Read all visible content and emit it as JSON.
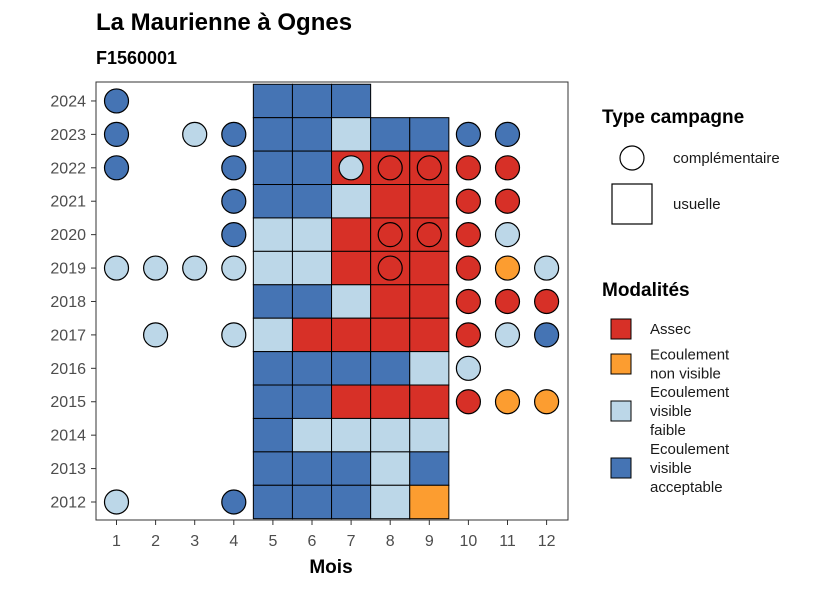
{
  "chart_data": {
    "type": "heatmap",
    "title": "La Maurienne à Ognes",
    "subtitle": "F1560001",
    "xlabel": "Mois",
    "ylabel": "",
    "x_ticks": [
      "1",
      "2",
      "3",
      "4",
      "5",
      "6",
      "7",
      "8",
      "9",
      "10",
      "11",
      "12"
    ],
    "y_ticks": [
      "2012",
      "2013",
      "2014",
      "2015",
      "2016",
      "2017",
      "2018",
      "2019",
      "2020",
      "2021",
      "2022",
      "2023",
      "2024"
    ],
    "grid": false,
    "legend_position": "right",
    "colors": {
      "Assec": "#d73027",
      "Ecoulement non visible": "#fc9d30",
      "Ecoulement visible faible": "#bcd7e8",
      "Ecoulement visible acceptable": "#4574b4"
    },
    "legend_shape": {
      "title": "Type campagne",
      "items": [
        {
          "key": "complementaire",
          "label": "complémentaire",
          "shape": "circle"
        },
        {
          "key": "usuelle",
          "label": "usuelle",
          "shape": "square"
        }
      ]
    },
    "legend_modalites": {
      "title": "Modalités",
      "items": [
        {
          "key": "Assec",
          "lines": [
            "Assec"
          ]
        },
        {
          "key": "Ecoulement non visible",
          "lines": [
            "Ecoulement",
            "non visible"
          ]
        },
        {
          "key": "Ecoulement visible faible",
          "lines": [
            "Ecoulement",
            "visible",
            "faible"
          ]
        },
        {
          "key": "Ecoulement visible acceptable",
          "lines": [
            "Ecoulement",
            "visible",
            "acceptable"
          ]
        }
      ]
    },
    "usuelle": [
      {
        "year": 2024,
        "month": 5,
        "modalite": "Ecoulement visible acceptable"
      },
      {
        "year": 2024,
        "month": 6,
        "modalite": "Ecoulement visible acceptable"
      },
      {
        "year": 2024,
        "month": 7,
        "modalite": "Ecoulement visible acceptable"
      },
      {
        "year": 2023,
        "month": 5,
        "modalite": "Ecoulement visible acceptable"
      },
      {
        "year": 2023,
        "month": 6,
        "modalite": "Ecoulement visible acceptable"
      },
      {
        "year": 2023,
        "month": 7,
        "modalite": "Ecoulement visible faible"
      },
      {
        "year": 2023,
        "month": 8,
        "modalite": "Ecoulement visible acceptable"
      },
      {
        "year": 2023,
        "month": 9,
        "modalite": "Ecoulement visible acceptable"
      },
      {
        "year": 2022,
        "month": 5,
        "modalite": "Ecoulement visible acceptable"
      },
      {
        "year": 2022,
        "month": 6,
        "modalite": "Ecoulement visible acceptable"
      },
      {
        "year": 2022,
        "month": 7,
        "modalite": "Assec"
      },
      {
        "year": 2022,
        "month": 8,
        "modalite": "Assec"
      },
      {
        "year": 2022,
        "month": 9,
        "modalite": "Assec"
      },
      {
        "year": 2021,
        "month": 5,
        "modalite": "Ecoulement visible acceptable"
      },
      {
        "year": 2021,
        "month": 6,
        "modalite": "Ecoulement visible acceptable"
      },
      {
        "year": 2021,
        "month": 7,
        "modalite": "Ecoulement visible faible"
      },
      {
        "year": 2021,
        "month": 8,
        "modalite": "Assec"
      },
      {
        "year": 2021,
        "month": 9,
        "modalite": "Assec"
      },
      {
        "year": 2020,
        "month": 5,
        "modalite": "Ecoulement visible faible"
      },
      {
        "year": 2020,
        "month": 6,
        "modalite": "Ecoulement visible faible"
      },
      {
        "year": 2020,
        "month": 7,
        "modalite": "Assec"
      },
      {
        "year": 2020,
        "month": 8,
        "modalite": "Assec"
      },
      {
        "year": 2020,
        "month": 9,
        "modalite": "Assec"
      },
      {
        "year": 2019,
        "month": 5,
        "modalite": "Ecoulement visible faible"
      },
      {
        "year": 2019,
        "month": 6,
        "modalite": "Ecoulement visible faible"
      },
      {
        "year": 2019,
        "month": 7,
        "modalite": "Assec"
      },
      {
        "year": 2019,
        "month": 8,
        "modalite": "Assec"
      },
      {
        "year": 2019,
        "month": 9,
        "modalite": "Assec"
      },
      {
        "year": 2018,
        "month": 5,
        "modalite": "Ecoulement visible acceptable"
      },
      {
        "year": 2018,
        "month": 6,
        "modalite": "Ecoulement visible acceptable"
      },
      {
        "year": 2018,
        "month": 7,
        "modalite": "Ecoulement visible faible"
      },
      {
        "year": 2018,
        "month": 8,
        "modalite": "Assec"
      },
      {
        "year": 2018,
        "month": 9,
        "modalite": "Assec"
      },
      {
        "year": 2017,
        "month": 5,
        "modalite": "Ecoulement visible faible"
      },
      {
        "year": 2017,
        "month": 6,
        "modalite": "Assec"
      },
      {
        "year": 2017,
        "month": 7,
        "modalite": "Assec"
      },
      {
        "year": 2017,
        "month": 8,
        "modalite": "Assec"
      },
      {
        "year": 2017,
        "month": 9,
        "modalite": "Assec"
      },
      {
        "year": 2016,
        "month": 5,
        "modalite": "Ecoulement visible acceptable"
      },
      {
        "year": 2016,
        "month": 6,
        "modalite": "Ecoulement visible acceptable"
      },
      {
        "year": 2016,
        "month": 7,
        "modalite": "Ecoulement visible acceptable"
      },
      {
        "year": 2016,
        "month": 8,
        "modalite": "Ecoulement visible acceptable"
      },
      {
        "year": 2016,
        "month": 9,
        "modalite": "Ecoulement visible faible"
      },
      {
        "year": 2015,
        "month": 5,
        "modalite": "Ecoulement visible acceptable"
      },
      {
        "year": 2015,
        "month": 6,
        "modalite": "Ecoulement visible acceptable"
      },
      {
        "year": 2015,
        "month": 7,
        "modalite": "Assec"
      },
      {
        "year": 2015,
        "month": 8,
        "modalite": "Assec"
      },
      {
        "year": 2015,
        "month": 9,
        "modalite": "Assec"
      },
      {
        "year": 2014,
        "month": 5,
        "modalite": "Ecoulement visible acceptable"
      },
      {
        "year": 2014,
        "month": 6,
        "modalite": "Ecoulement visible faible"
      },
      {
        "year": 2014,
        "month": 7,
        "modalite": "Ecoulement visible faible"
      },
      {
        "year": 2014,
        "month": 8,
        "modalite": "Ecoulement visible faible"
      },
      {
        "year": 2014,
        "month": 9,
        "modalite": "Ecoulement visible faible"
      },
      {
        "year": 2013,
        "month": 5,
        "modalite": "Ecoulement visible acceptable"
      },
      {
        "year": 2013,
        "month": 6,
        "modalite": "Ecoulement visible acceptable"
      },
      {
        "year": 2013,
        "month": 7,
        "modalite": "Ecoulement visible acceptable"
      },
      {
        "year": 2013,
        "month": 8,
        "modalite": "Ecoulement visible faible"
      },
      {
        "year": 2013,
        "month": 9,
        "modalite": "Ecoulement visible acceptable"
      },
      {
        "year": 2012,
        "month": 5,
        "modalite": "Ecoulement visible acceptable"
      },
      {
        "year": 2012,
        "month": 6,
        "modalite": "Ecoulement visible acceptable"
      },
      {
        "year": 2012,
        "month": 7,
        "modalite": "Ecoulement visible acceptable"
      },
      {
        "year": 2012,
        "month": 8,
        "modalite": "Ecoulement visible faible"
      },
      {
        "year": 2012,
        "month": 9,
        "modalite": "Ecoulement non visible"
      }
    ],
    "complementaire": [
      {
        "year": 2024,
        "month": 1,
        "modalite": "Ecoulement visible acceptable"
      },
      {
        "year": 2023,
        "month": 1,
        "modalite": "Ecoulement visible acceptable"
      },
      {
        "year": 2023,
        "month": 3,
        "modalite": "Ecoulement visible faible"
      },
      {
        "year": 2023,
        "month": 4,
        "modalite": "Ecoulement visible acceptable"
      },
      {
        "year": 2023,
        "month": 10,
        "modalite": "Ecoulement visible acceptable"
      },
      {
        "year": 2023,
        "month": 11,
        "modalite": "Ecoulement visible acceptable"
      },
      {
        "year": 2022,
        "month": 1,
        "modalite": "Ecoulement visible acceptable"
      },
      {
        "year": 2022,
        "month": 4,
        "modalite": "Ecoulement visible acceptable"
      },
      {
        "year": 2022,
        "month": 7,
        "modalite": "Ecoulement visible faible"
      },
      {
        "year": 2022,
        "month": 8,
        "modalite": "Assec"
      },
      {
        "year": 2022,
        "month": 9,
        "modalite": "Assec"
      },
      {
        "year": 2022,
        "month": 10,
        "modalite": "Assec"
      },
      {
        "year": 2022,
        "month": 11,
        "modalite": "Assec"
      },
      {
        "year": 2021,
        "month": 4,
        "modalite": "Ecoulement visible acceptable"
      },
      {
        "year": 2021,
        "month": 10,
        "modalite": "Assec"
      },
      {
        "year": 2021,
        "month": 11,
        "modalite": "Assec"
      },
      {
        "year": 2020,
        "month": 4,
        "modalite": "Ecoulement visible acceptable"
      },
      {
        "year": 2020,
        "month": 8,
        "modalite": "Assec"
      },
      {
        "year": 2020,
        "month": 9,
        "modalite": "Assec"
      },
      {
        "year": 2020,
        "month": 10,
        "modalite": "Assec"
      },
      {
        "year": 2020,
        "month": 11,
        "modalite": "Ecoulement visible faible"
      },
      {
        "year": 2019,
        "month": 1,
        "modalite": "Ecoulement visible faible"
      },
      {
        "year": 2019,
        "month": 2,
        "modalite": "Ecoulement visible faible"
      },
      {
        "year": 2019,
        "month": 3,
        "modalite": "Ecoulement visible faible"
      },
      {
        "year": 2019,
        "month": 4,
        "modalite": "Ecoulement visible faible"
      },
      {
        "year": 2019,
        "month": 8,
        "modalite": "Assec"
      },
      {
        "year": 2019,
        "month": 10,
        "modalite": "Assec"
      },
      {
        "year": 2019,
        "month": 11,
        "modalite": "Ecoulement non visible"
      },
      {
        "year": 2019,
        "month": 12,
        "modalite": "Ecoulement visible faible"
      },
      {
        "year": 2018,
        "month": 10,
        "modalite": "Assec"
      },
      {
        "year": 2018,
        "month": 11,
        "modalite": "Assec"
      },
      {
        "year": 2018,
        "month": 12,
        "modalite": "Assec"
      },
      {
        "year": 2017,
        "month": 2,
        "modalite": "Ecoulement visible faible"
      },
      {
        "year": 2017,
        "month": 4,
        "modalite": "Ecoulement visible faible"
      },
      {
        "year": 2017,
        "month": 10,
        "modalite": "Assec"
      },
      {
        "year": 2017,
        "month": 11,
        "modalite": "Ecoulement visible faible"
      },
      {
        "year": 2017,
        "month": 12,
        "modalite": "Ecoulement visible acceptable"
      },
      {
        "year": 2016,
        "month": 10,
        "modalite": "Ecoulement visible faible"
      },
      {
        "year": 2015,
        "month": 10,
        "modalite": "Assec"
      },
      {
        "year": 2015,
        "month": 11,
        "modalite": "Ecoulement non visible"
      },
      {
        "year": 2015,
        "month": 12,
        "modalite": "Ecoulement non visible"
      },
      {
        "year": 2012,
        "month": 1,
        "modalite": "Ecoulement visible faible"
      },
      {
        "year": 2012,
        "month": 4,
        "modalite": "Ecoulement visible acceptable"
      }
    ]
  }
}
